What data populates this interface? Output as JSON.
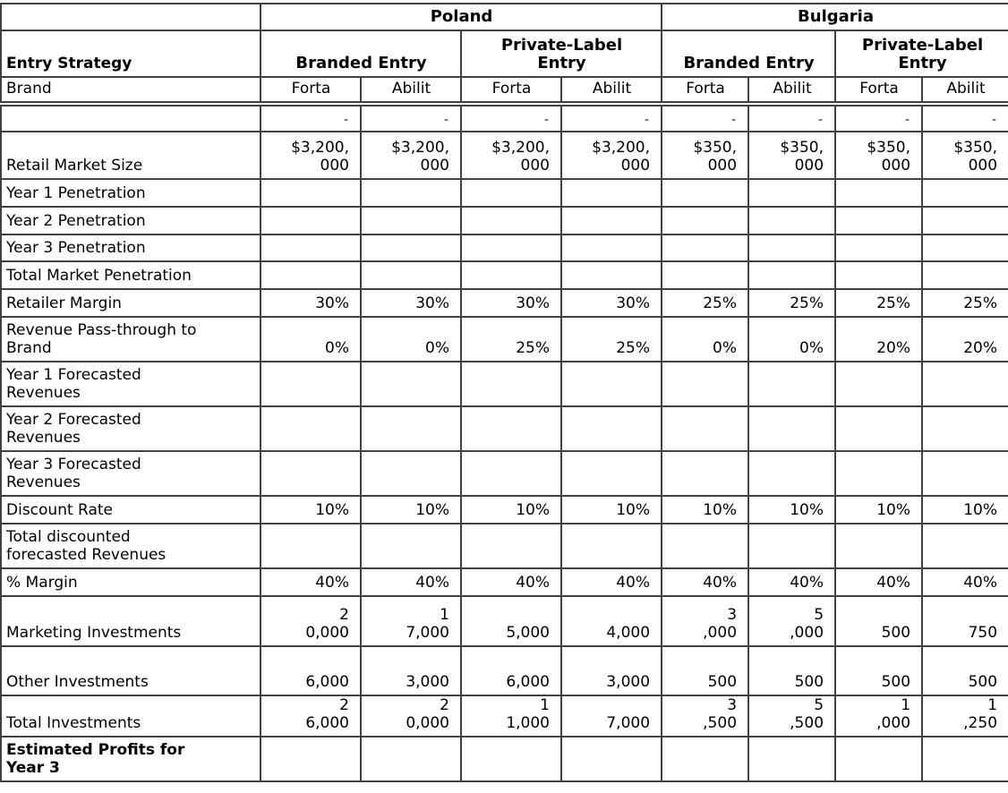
{
  "table": {
    "regions": [
      {
        "label": "Poland"
      },
      {
        "label": "Bulgaria"
      }
    ],
    "entry_strategy_label": "Entry Strategy",
    "col_groups": [
      {
        "label": "Branded Entry"
      },
      {
        "label": "Private-Label\nEntry"
      },
      {
        "label": "Branded Entry"
      },
      {
        "label": "Private-Label\nEntry"
      }
    ],
    "brand_label": "Brand",
    "brands": [
      "Forta",
      "Abilit",
      "Forta",
      "Abilit",
      "Forta",
      "Abilit",
      "Forta",
      "Abilit"
    ],
    "rows": [
      {
        "label": "",
        "cells": [
          "-",
          "-",
          "-",
          "-",
          "-",
          "-",
          "-",
          "-"
        ]
      },
      {
        "label": "Retail Market Size",
        "cells": [
          "$3,200,\n000",
          "$3,200,\n000",
          "$3,200,\n000",
          "$3,200,\n000",
          "$350,\n000",
          "$350,\n000",
          "$350,\n000",
          "$350,\n000"
        ]
      },
      {
        "label": "Year 1 Penetration",
        "cells": [
          "",
          "",
          "",
          "",
          "",
          "",
          "",
          ""
        ]
      },
      {
        "label": "Year 2 Penetration",
        "cells": [
          "",
          "",
          "",
          "",
          "",
          "",
          "",
          ""
        ]
      },
      {
        "label": "Year 3 Penetration",
        "cells": [
          "",
          "",
          "",
          "",
          "",
          "",
          "",
          ""
        ]
      },
      {
        "label": "Total Market Penetration",
        "cells": [
          "",
          "",
          "",
          "",
          "",
          "",
          "",
          ""
        ]
      },
      {
        "label": "Retailer Margin",
        "cells": [
          "30%",
          "30%",
          "30%",
          "30%",
          "25%",
          "25%",
          "25%",
          "25%"
        ]
      },
      {
        "label": "Revenue Pass-through to\nBrand",
        "cells": [
          "0%",
          "0%",
          "25%",
          "25%",
          "0%",
          "0%",
          "20%",
          "20%"
        ]
      },
      {
        "label": "Year 1 Forecasted\nRevenues",
        "cells": [
          "",
          "",
          "",
          "",
          "",
          "",
          "",
          ""
        ]
      },
      {
        "label": "Year 2 Forecasted\nRevenues",
        "cells": [
          "",
          "",
          "",
          "",
          "",
          "",
          "",
          ""
        ]
      },
      {
        "label": "Year 3 Forecasted\nRevenues",
        "cells": [
          "",
          "",
          "",
          "",
          "",
          "",
          "",
          ""
        ]
      },
      {
        "label": "Discount Rate",
        "cells": [
          "10%",
          "10%",
          "10%",
          "10%",
          "10%",
          "10%",
          "10%",
          "10%"
        ]
      },
      {
        "label": "Total discounted\nforecasted Revenues",
        "cells": [
          "",
          "",
          "",
          "",
          "",
          "",
          "",
          ""
        ]
      },
      {
        "label": "% Margin",
        "cells": [
          "40%",
          "40%",
          "40%",
          "40%",
          "40%",
          "40%",
          "40%",
          "40%"
        ]
      },
      {
        "label": "Marketing Investments",
        "cells": [
          "2\n0,000",
          "1\n7,000",
          "5,000",
          "4,000",
          "3\n,000",
          "5\n,000",
          "500",
          "750"
        ]
      },
      {
        "label": "Other Investments",
        "cells": [
          "6,000",
          "3,000",
          "6,000",
          "3,000",
          "500",
          "500",
          "500",
          "500"
        ]
      },
      {
        "label": "Total Investments",
        "cells": [
          "2\n6,000",
          "2\n0,000",
          "1\n1,000",
          "7,000",
          "3\n,500",
          "5\n,500",
          "1\n,000",
          "1\n,250"
        ]
      },
      {
        "label": "Estimated Profits for\nYear 3",
        "cells": [
          "",
          "",
          "",
          "",
          "",
          "",
          "",
          ""
        ],
        "bold": true
      }
    ]
  }
}
